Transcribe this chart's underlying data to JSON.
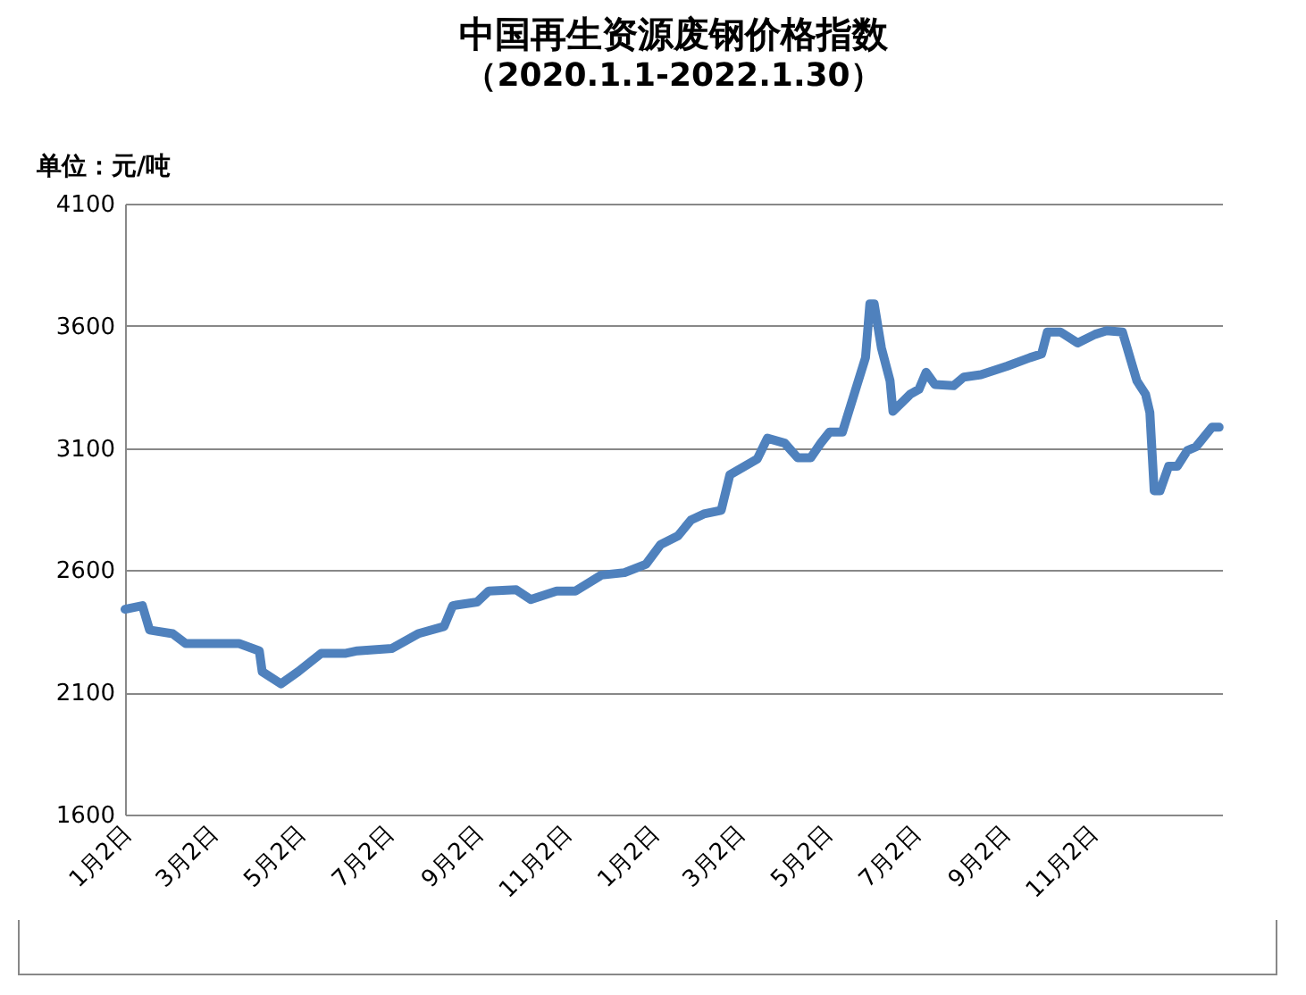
{
  "chart_data": {
    "type": "line",
    "title": "中国再生资源废钢价格指数",
    "subtitle": "（2020.1.1-2022.1.30）",
    "ylabel": "单位：元/吨",
    "x": [
      "2020-01-01",
      "2020-01-13",
      "2020-01-18",
      "2020-02-03",
      "2020-02-12",
      "2020-03-20",
      "2020-04-03",
      "2020-04-05",
      "2020-04-18",
      "2020-04-30",
      "2020-05-16",
      "2020-06-02",
      "2020-06-10",
      "2020-07-04",
      "2020-07-22",
      "2020-08-09",
      "2020-08-15",
      "2020-09-01",
      "2020-09-09",
      "2020-09-28",
      "2020-10-08",
      "2020-10-26",
      "2020-11-08",
      "2020-11-26",
      "2020-12-12",
      "2020-12-27",
      "2021-01-06",
      "2021-01-18",
      "2021-01-27",
      "2021-02-05",
      "2021-02-17",
      "2021-02-23",
      "2021-03-14",
      "2021-03-21",
      "2021-04-02",
      "2021-04-11",
      "2021-04-20",
      "2021-04-27",
      "2021-05-03",
      "2021-05-12",
      "2021-05-28",
      "2021-05-31",
      "2021-06-03",
      "2021-06-08",
      "2021-06-14",
      "2021-06-16",
      "2021-06-28",
      "2021-07-04",
      "2021-07-09",
      "2021-07-15",
      "2021-07-28",
      "2021-08-04",
      "2021-08-16",
      "2021-09-03",
      "2021-09-19",
      "2021-09-27",
      "2021-10-01",
      "2021-10-10",
      "2021-10-22",
      "2021-11-03",
      "2021-11-11",
      "2021-11-22",
      "2021-12-02",
      "2021-12-08",
      "2021-12-11",
      "2021-12-14",
      "2021-12-18",
      "2021-12-24",
      "2021-12-30",
      "2022-01-06",
      "2022-01-12",
      "2022-01-23",
      "2022-01-28"
    ],
    "series": [
      {
        "color": "#4f81bd",
        "values": [
          2440,
          2455,
          2355,
          2340,
          2300,
          2300,
          2270,
          2185,
          2135,
          2185,
          2260,
          2260,
          2270,
          2280,
          2340,
          2370,
          2455,
          2470,
          2515,
          2520,
          2480,
          2515,
          2515,
          2580,
          2590,
          2625,
          2705,
          2740,
          2805,
          2830,
          2845,
          2990,
          3055,
          3140,
          3120,
          3060,
          3060,
          3120,
          3165,
          3165,
          3470,
          3690,
          3690,
          3510,
          3375,
          3250,
          3320,
          3340,
          3410,
          3360,
          3355,
          3390,
          3400,
          3435,
          3470,
          3485,
          3575,
          3575,
          3530,
          3565,
          3580,
          3575,
          3375,
          3320,
          3245,
          2925,
          2925,
          3025,
          3025,
          3090,
          3105,
          3185,
          3185
        ]
      }
    ],
    "xlim": [
      "2020-01-01",
      "2022-01-30"
    ],
    "xticks": [
      {
        "value": "2020-01-02",
        "label": "1月2日"
      },
      {
        "value": "2020-03-02",
        "label": "3月2日"
      },
      {
        "value": "2020-05-02",
        "label": "5月2日"
      },
      {
        "value": "2020-07-02",
        "label": "7月2日"
      },
      {
        "value": "2020-09-02",
        "label": "9月2日"
      },
      {
        "value": "2020-11-02",
        "label": "11月2日"
      },
      {
        "value": "2021-01-02",
        "label": "1月2日"
      },
      {
        "value": "2021-03-02",
        "label": "3月2日"
      },
      {
        "value": "2021-05-02",
        "label": "5月2日"
      },
      {
        "value": "2021-07-02",
        "label": "7月2日"
      },
      {
        "value": "2021-09-02",
        "label": "9月2日"
      },
      {
        "value": "2021-11-02",
        "label": "11月2日"
      }
    ],
    "ylim": [
      1600,
      4100
    ],
    "yticks": [
      1600,
      2100,
      2600,
      3100,
      3600,
      4100
    ],
    "grid": "y",
    "legend": false
  }
}
